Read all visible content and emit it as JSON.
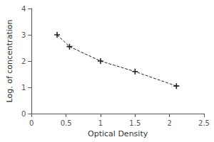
{
  "chart_data": {
    "type": "line",
    "x": [
      0.37,
      0.55,
      1.0,
      1.5,
      2.1
    ],
    "values": [
      3.0,
      2.55,
      2.0,
      1.6,
      1.05
    ],
    "xlabel": "Optical Density",
    "ylabel": "Log. of concentration",
    "xlim": [
      0,
      2.5
    ],
    "ylim": [
      0,
      4
    ],
    "xticks": [
      0,
      0.5,
      1,
      1.5,
      2,
      2.5
    ],
    "yticks": [
      0,
      1,
      2,
      3,
      4
    ],
    "color": "#222222",
    "marker": "plus",
    "line_style": "dashed",
    "grid": false
  }
}
